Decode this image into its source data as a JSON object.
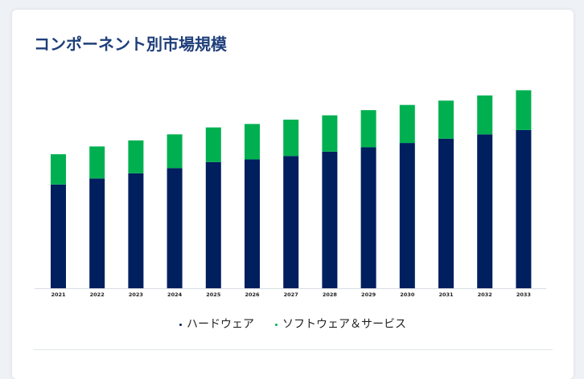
{
  "card": {
    "title": "コンポーネント別市場規模"
  },
  "colors": {
    "hardware": "#001f5f",
    "software_services": "#00b050",
    "title": "#1f3f7a"
  },
  "legend": {
    "items": [
      {
        "label": "ハードウェア",
        "color": "#001f5f"
      },
      {
        "label": "ソフトウェア＆サービス",
        "color": "#00b050"
      }
    ]
  },
  "chart_data": {
    "type": "bar",
    "stacked": true,
    "categories": [
      "2021",
      "2022",
      "2023",
      "2024",
      "2025",
      "2026",
      "2027",
      "2028",
      "2029",
      "2030",
      "2031",
      "2032",
      "2033"
    ],
    "series": [
      {
        "name": "ハードウェア",
        "color": "#001f5f",
        "values": [
          120,
          127,
          133,
          139,
          146,
          149,
          153,
          158,
          163,
          168,
          173,
          178,
          183
        ]
      },
      {
        "name": "ソフトウェア＆サービス",
        "color": "#00b050",
        "values": [
          35,
          37,
          38,
          39,
          40,
          41,
          42,
          42,
          43,
          44,
          44,
          45,
          46
        ]
      }
    ],
    "ylim": [
      0,
      260
    ],
    "grid": false,
    "legend_position": "bottom",
    "title": "",
    "xlabel": "",
    "ylabel": ""
  }
}
